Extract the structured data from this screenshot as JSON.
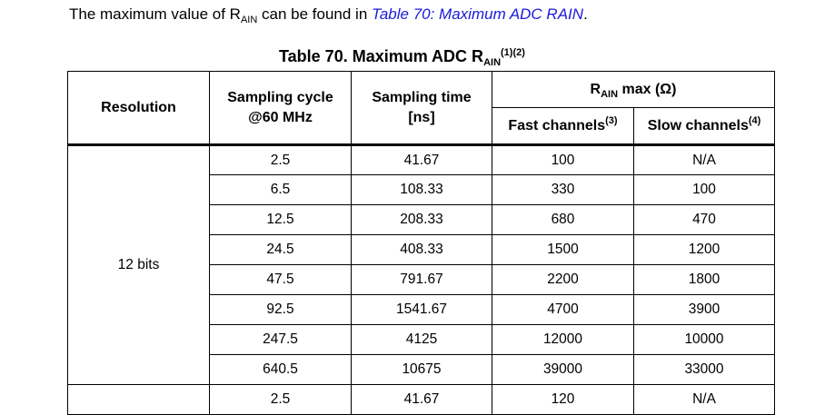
{
  "intro": {
    "prefix": "The maximum value of R",
    "sub": "AIN",
    "middle": " can be found in ",
    "link": "Table 70: Maximum ADC RAIN",
    "suffix": "."
  },
  "caption": {
    "prefix": "Table 70. Maximum ADC R",
    "sub": "AIN",
    "sup": "(1)(2)"
  },
  "headers": {
    "resolution": "Resolution",
    "sampling_cycle_line1": "Sampling cycle",
    "sampling_cycle_line2": "@60 MHz",
    "sampling_time_line1": "Sampling time",
    "sampling_time_line2": "[ns]",
    "rain_prefix": "R",
    "rain_sub": "AIN",
    "rain_suffix": " max (Ω)",
    "fast_label": "Fast channels",
    "fast_sup": "(3)",
    "slow_label": "Slow channels",
    "slow_sup": "(4)"
  },
  "groups": [
    {
      "resolution": "12 bits",
      "rows": [
        [
          "2.5",
          "41.67",
          "100",
          "N/A"
        ],
        [
          "6.5",
          "108.33",
          "330",
          "100"
        ],
        [
          "12.5",
          "208.33",
          "680",
          "470"
        ],
        [
          "24.5",
          "408.33",
          "1500",
          "1200"
        ],
        [
          "47.5",
          "791.67",
          "2200",
          "1800"
        ],
        [
          "92.5",
          "1541.67",
          "4700",
          "3900"
        ],
        [
          "247.5",
          "4125",
          "12000",
          "10000"
        ],
        [
          "640.5",
          "10675",
          "39000",
          "33000"
        ]
      ]
    },
    {
      "resolution": "",
      "rows": [
        [
          "2.5",
          "41.67",
          "120",
          "N/A"
        ]
      ]
    }
  ]
}
